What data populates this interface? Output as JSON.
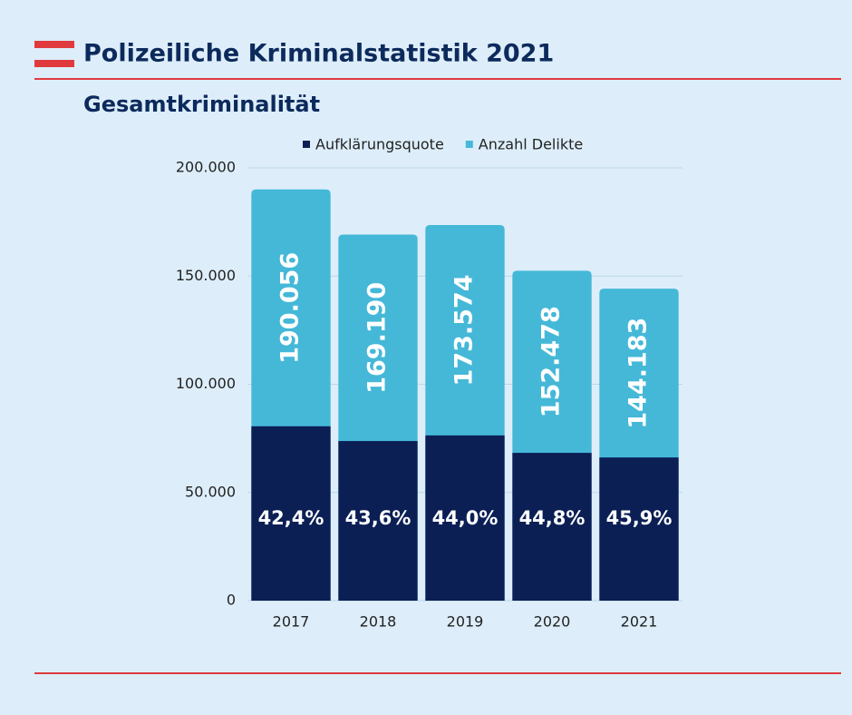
{
  "chart_data": {
    "type": "bar",
    "title": "Polizeiliche Kriminalstatistik 2021",
    "subtitle": "Gesamtkriminalität",
    "categories": [
      "2017",
      "2018",
      "2019",
      "2020",
      "2021"
    ],
    "series": [
      {
        "name": "Aufklärungsquote",
        "color": "#0b1f55",
        "values": [
          42.4,
          43.6,
          44.0,
          44.8,
          45.9
        ],
        "value_labels": [
          "42,4%",
          "43,6%",
          "44,0%",
          "44,8%",
          "45,9%"
        ]
      },
      {
        "name": "Anzahl Delikte",
        "color": "#45b8d8",
        "values": [
          190056,
          169190,
          173574,
          152478,
          144183
        ],
        "value_labels": [
          "190.056",
          "169.190",
          "173.574",
          "152.478",
          "144.183"
        ]
      }
    ],
    "ylim": [
      0,
      200000
    ],
    "yticks": [
      0,
      {
        "value": 50000,
        "label": "50.000"
      },
      {
        "value": 100000,
        "label": "100.000"
      },
      {
        "value": 150000,
        "label": "150.000"
      },
      {
        "value": 200000,
        "label": "200.000"
      }
    ],
    "grid": true,
    "legend": "top"
  }
}
